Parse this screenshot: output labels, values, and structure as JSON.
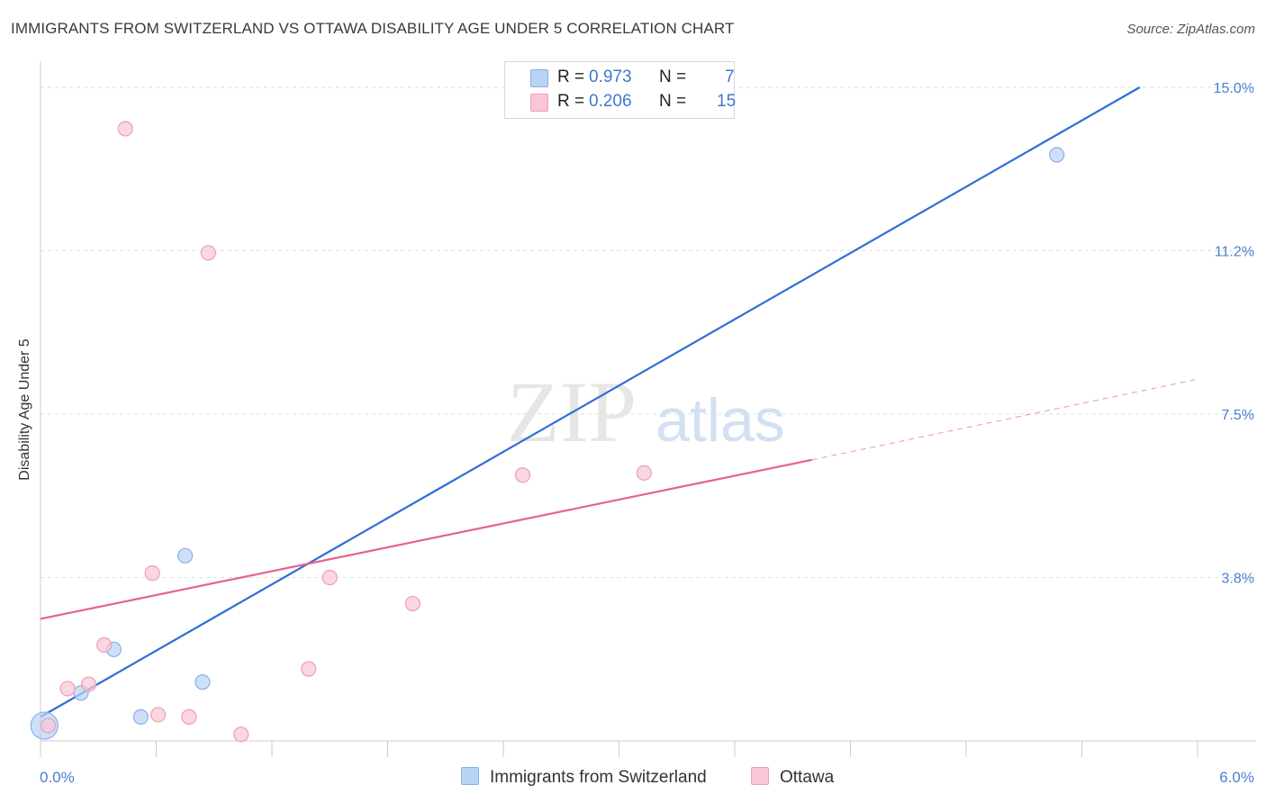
{
  "title": "IMMIGRANTS FROM SWITZERLAND VS OTTAWA DISABILITY AGE UNDER 5 CORRELATION CHART",
  "source": "Source: ZipAtlas.com",
  "watermark": {
    "zip": "ZIP",
    "atlas": "atlas"
  },
  "colors": {
    "blue_fill": "#b9d3f5",
    "blue_stroke": "#8ab0e6",
    "blue_line": "#2e6fd4",
    "pink_fill": "#f8c6d5",
    "pink_stroke": "#ee9db6",
    "pink_line": "#e5628b",
    "axis_label": "#4a7fd0",
    "grid": "#dedede"
  },
  "legend": {
    "rows": [
      {
        "r_label": "R =",
        "r_value": "0.973",
        "n_label": "N =",
        "n_value": "7"
      },
      {
        "r_label": "R =",
        "r_value": "0.206",
        "n_label": "N =",
        "n_value": "15"
      }
    ]
  },
  "bottom_legend": {
    "series1": "Immigrants from Switzerland",
    "series2": "Ottawa"
  },
  "chart_data": {
    "type": "scatter",
    "title": "IMMIGRANTS FROM SWITZERLAND VS OTTAWA DISABILITY AGE UNDER 5 CORRELATION CHART",
    "xlabel": "",
    "ylabel": "Disability Age Under 5",
    "xlim": [
      0,
      6.0
    ],
    "ylim": [
      0,
      15.0
    ],
    "x_tick_labels": [
      {
        "value": 0.0,
        "label": "0.0%"
      },
      {
        "value": 6.0,
        "label": "6.0%"
      }
    ],
    "y_tick_labels": [
      {
        "value": 3.75,
        "label": "3.8%"
      },
      {
        "value": 7.5,
        "label": "7.5%"
      },
      {
        "value": 11.25,
        "label": "11.2%"
      },
      {
        "value": 15.0,
        "label": "15.0%"
      }
    ],
    "series": [
      {
        "name": "Immigrants from Switzerland",
        "color": "blue",
        "points": [
          {
            "x": 0.02,
            "y": 0.35,
            "size": "large"
          },
          {
            "x": 0.21,
            "y": 1.1
          },
          {
            "x": 0.38,
            "y": 2.1
          },
          {
            "x": 0.52,
            "y": 0.55
          },
          {
            "x": 0.75,
            "y": 4.25
          },
          {
            "x": 0.84,
            "y": 1.35
          },
          {
            "x": 5.27,
            "y": 13.45
          }
        ],
        "trend": {
          "x0": 0.0,
          "y0": 0.55,
          "x1": 5.7,
          "y1": 15.0,
          "style": "solid"
        }
      },
      {
        "name": "Ottawa",
        "color": "pink",
        "points": [
          {
            "x": 0.04,
            "y": 0.35
          },
          {
            "x": 0.14,
            "y": 1.2
          },
          {
            "x": 0.25,
            "y": 1.3
          },
          {
            "x": 0.33,
            "y": 2.2
          },
          {
            "x": 0.44,
            "y": 14.05
          },
          {
            "x": 0.58,
            "y": 3.85
          },
          {
            "x": 0.61,
            "y": 0.6
          },
          {
            "x": 0.77,
            "y": 0.55
          },
          {
            "x": 0.87,
            "y": 11.2
          },
          {
            "x": 1.04,
            "y": 0.15
          },
          {
            "x": 1.39,
            "y": 1.65
          },
          {
            "x": 1.5,
            "y": 3.75
          },
          {
            "x": 1.93,
            "y": 3.15
          },
          {
            "x": 2.5,
            "y": 6.1
          },
          {
            "x": 3.13,
            "y": 6.15
          }
        ],
        "trend": {
          "x0": 0.0,
          "y0": 2.8,
          "x1": 4.0,
          "y1": 6.45,
          "x_dash_end": 6.0,
          "y_dash_end": 8.3,
          "style": "solid-then-dashed"
        }
      }
    ]
  }
}
